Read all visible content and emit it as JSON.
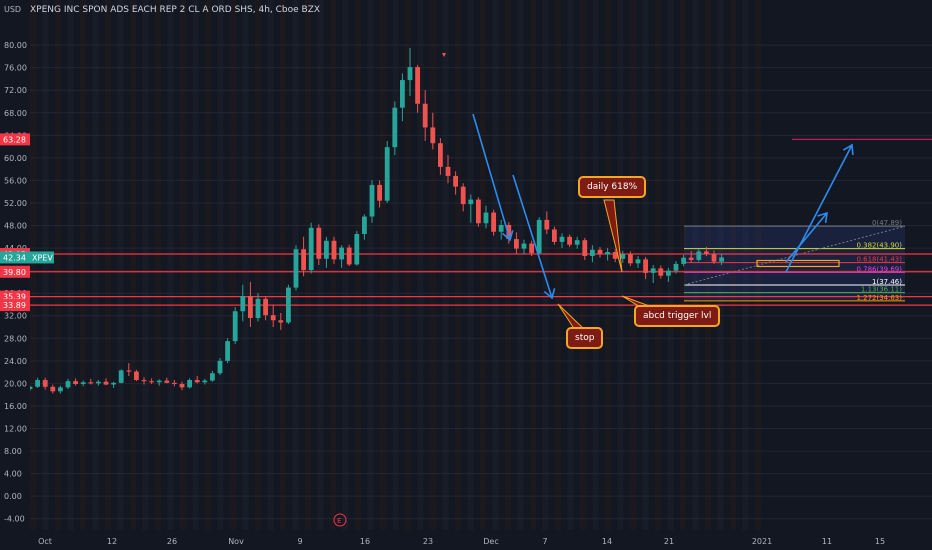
{
  "chart_data": {
    "type": "candlestick",
    "title": "XPENG INC SPON ADS EACH REP 2 CL A ORD SHS, 4h, Cboe BZX",
    "currency": "USD",
    "symbol": "XPEV",
    "ylim": [
      -6,
      88
    ],
    "y_ticks": [
      -4,
      0,
      4,
      8,
      12,
      16,
      20,
      24,
      28,
      32,
      36,
      40,
      44,
      48,
      52,
      56,
      60,
      64,
      68,
      72,
      76,
      80
    ],
    "y_tick_labels": [
      "-4.00",
      "0.00",
      "4.00",
      "8.00",
      "12.00",
      "16.00",
      "20.00",
      "24.00",
      "28.00",
      "32.00",
      "36.00",
      "40.00",
      "44.00",
      "48.00",
      "52.00",
      "56.00",
      "60.00",
      "64.00",
      "68.00",
      "72.00",
      "76.00",
      "80.00"
    ],
    "x_tick_labels": [
      "Oct",
      "12",
      "26",
      "Nov",
      "9",
      "16",
      "23",
      "Dec",
      "7",
      "14",
      "21",
      "2021",
      "11",
      "15"
    ],
    "price_flags": [
      {
        "label": "63.28",
        "value": 63.28,
        "color": "#f23645"
      },
      {
        "label": "42.95",
        "value": 42.95,
        "color": "#f23645"
      },
      {
        "label": "42.34",
        "value": 42.34,
        "color": "#26a69a"
      },
      {
        "label": "39.80",
        "value": 39.8,
        "color": "#f23645"
      },
      {
        "label": "35.39",
        "value": 35.39,
        "color": "#f23645"
      },
      {
        "label": "33.89",
        "value": 33.89,
        "color": "#f23645"
      }
    ],
    "horizontal_lines": [
      63.28,
      42.95,
      39.8,
      35.39,
      33.89
    ],
    "fib_levels": [
      {
        "label": "0(47.89)",
        "value": 47.89,
        "color": "#787b86"
      },
      {
        "label": "0.382(43.90)",
        "value": 43.9,
        "color": "#cddc39"
      },
      {
        "label": "0.618(41.43)",
        "value": 41.43,
        "color": "#f23645"
      },
      {
        "label": "0.786(39.69)",
        "value": 39.69,
        "color": "#e040fb"
      },
      {
        "label": "1(37.46)",
        "value": 37.46,
        "color": "#ffffff"
      },
      {
        "label": "1.13(36.11)",
        "value": 36.11,
        "color": "#4caf50"
      },
      {
        "label": "1.272(34.63)",
        "value": 34.63,
        "color": "#ff9800"
      }
    ],
    "candles": [
      [
        1,
        19.0,
        19.6,
        18.7,
        19.4
      ],
      [
        2,
        19.4,
        21.0,
        19.2,
        20.6
      ],
      [
        3,
        20.6,
        21.0,
        18.9,
        19.4
      ],
      [
        4,
        19.4,
        19.8,
        18.2,
        18.6
      ],
      [
        5,
        18.6,
        19.6,
        18.2,
        19.3
      ],
      [
        6,
        19.3,
        20.8,
        19.0,
        20.4
      ],
      [
        7,
        20.4,
        20.9,
        19.6,
        19.9
      ],
      [
        8,
        19.9,
        20.5,
        19.5,
        20.2
      ],
      [
        9,
        20.2,
        20.8,
        19.8,
        20.0
      ],
      [
        10,
        20.0,
        20.6,
        19.6,
        20.3
      ],
      [
        11,
        20.3,
        20.9,
        19.7,
        19.8
      ],
      [
        12,
        19.8,
        20.3,
        19.2,
        20.1
      ],
      [
        13,
        20.1,
        22.5,
        20.0,
        22.3
      ],
      [
        14,
        22.3,
        23.6,
        21.3,
        22.1
      ],
      [
        15,
        22.1,
        22.4,
        20.4,
        20.6
      ],
      [
        16,
        20.6,
        21.1,
        19.8,
        20.4
      ],
      [
        17,
        20.4,
        20.9,
        19.9,
        20.2
      ],
      [
        18,
        20.2,
        20.7,
        19.6,
        20.5
      ],
      [
        19,
        20.5,
        21.0,
        20.0,
        20.1
      ],
      [
        20,
        20.1,
        20.6,
        19.5,
        19.9
      ],
      [
        21,
        19.9,
        20.3,
        18.8,
        19.3
      ],
      [
        22,
        19.3,
        20.9,
        19.1,
        20.6
      ],
      [
        23,
        20.6,
        21.3,
        20.0,
        20.2
      ],
      [
        24,
        20.2,
        20.8,
        19.8,
        20.5
      ],
      [
        25,
        20.5,
        22.2,
        20.3,
        21.8
      ],
      [
        26,
        21.8,
        24.5,
        21.5,
        24.0
      ],
      [
        27,
        24.0,
        28.0,
        23.6,
        27.5
      ],
      [
        28,
        27.5,
        33.5,
        27.0,
        32.8
      ],
      [
        29,
        32.8,
        37.5,
        31.0,
        35.5
      ],
      [
        30,
        35.5,
        38.0,
        30.0,
        31.6
      ],
      [
        31,
        31.6,
        36.0,
        31.0,
        35.0
      ],
      [
        32,
        35.0,
        35.5,
        31.2,
        32.1
      ],
      [
        33,
        32.1,
        34.0,
        30.0,
        31.2
      ],
      [
        34,
        31.2,
        32.5,
        29.5,
        30.8
      ],
      [
        35,
        30.8,
        37.5,
        30.5,
        37.0
      ],
      [
        36,
        37.0,
        44.5,
        36.5,
        43.8
      ],
      [
        37,
        43.8,
        46.0,
        39.0,
        40.1
      ],
      [
        38,
        40.1,
        48.5,
        39.5,
        47.6
      ],
      [
        39,
        47.6,
        48.2,
        41.0,
        42.1
      ],
      [
        40,
        42.1,
        46.0,
        40.5,
        45.3
      ],
      [
        41,
        45.3,
        46.0,
        41.2,
        42.0
      ],
      [
        42,
        42.0,
        44.5,
        40.5,
        44.1
      ],
      [
        43,
        44.1,
        44.6,
        40.8,
        41.1
      ],
      [
        44,
        41.1,
        47.0,
        40.9,
        46.5
      ],
      [
        45,
        46.5,
        50.0,
        45.5,
        49.6
      ],
      [
        46,
        49.6,
        56.0,
        48.5,
        55.2
      ],
      [
        47,
        55.2,
        56.0,
        51.2,
        52.4
      ],
      [
        48,
        52.4,
        63.0,
        52.0,
        61.9
      ],
      [
        49,
        61.9,
        70.0,
        60.5,
        68.9
      ],
      [
        50,
        68.9,
        75.0,
        66.5,
        73.8
      ],
      [
        51,
        73.8,
        79.5,
        71.0,
        76.1
      ],
      [
        52,
        76.1,
        76.5,
        68.0,
        69.6
      ],
      [
        53,
        69.6,
        72.0,
        63.0,
        65.4
      ],
      [
        54,
        65.4,
        68.0,
        61.5,
        62.6
      ],
      [
        55,
        62.6,
        63.5,
        57.0,
        58.4
      ],
      [
        56,
        58.4,
        60.5,
        55.5,
        56.8
      ],
      [
        57,
        56.8,
        57.6,
        53.5,
        54.9
      ],
      [
        58,
        54.9,
        55.5,
        50.5,
        51.8
      ],
      [
        59,
        51.8,
        53.5,
        48.5,
        52.6
      ],
      [
        60,
        52.6,
        53.0,
        47.8,
        48.4
      ],
      [
        61,
        48.4,
        51.5,
        47.5,
        50.3
      ],
      [
        62,
        50.3,
        50.8,
        46.2,
        46.9
      ],
      [
        63,
        46.9,
        49.0,
        45.5,
        48.1
      ],
      [
        64,
        48.1,
        48.6,
        44.8,
        45.6
      ],
      [
        65,
        45.6,
        46.8,
        43.0,
        43.9
      ],
      [
        66,
        43.9,
        45.5,
        42.9,
        44.8
      ],
      [
        67,
        44.8,
        45.3,
        42.6,
        43.1
      ],
      [
        68,
        43.1,
        49.5,
        43.0,
        49.0
      ],
      [
        69,
        49.0,
        50.5,
        46.5,
        47.3
      ],
      [
        70,
        47.3,
        47.8,
        44.6,
        45.1
      ],
      [
        71,
        45.1,
        46.6,
        44.0,
        46.0
      ],
      [
        72,
        46.0,
        46.4,
        44.2,
        44.6
      ],
      [
        73,
        44.6,
        46.0,
        43.9,
        45.4
      ],
      [
        74,
        45.4,
        45.8,
        41.9,
        42.6
      ],
      [
        75,
        42.6,
        44.5,
        41.5,
        43.7
      ],
      [
        76,
        43.7,
        44.2,
        42.3,
        42.9
      ],
      [
        77,
        42.9,
        44.0,
        41.8,
        43.3
      ],
      [
        78,
        43.3,
        43.8,
        41.5,
        42.1
      ],
      [
        79,
        42.1,
        43.5,
        41.4,
        42.9
      ],
      [
        80,
        42.9,
        43.4,
        40.8,
        41.3
      ],
      [
        81,
        41.3,
        42.6,
        40.5,
        42.0
      ],
      [
        82,
        42.0,
        42.4,
        38.5,
        39.6
      ],
      [
        83,
        39.6,
        41.0,
        37.8,
        40.4
      ],
      [
        84,
        40.4,
        40.9,
        38.6,
        39.1
      ],
      [
        85,
        39.1,
        40.5,
        38.0,
        40.0
      ],
      [
        86,
        40.0,
        41.7,
        39.5,
        41.2
      ],
      [
        87,
        41.2,
        42.8,
        40.8,
        42.3
      ],
      [
        88,
        42.3,
        43.5,
        41.4,
        41.9
      ],
      [
        89,
        41.9,
        43.8,
        41.6,
        43.4
      ],
      [
        90,
        43.4,
        44.2,
        42.6,
        43.0
      ],
      [
        91,
        43.0,
        43.6,
        41.2,
        41.6
      ],
      [
        92,
        41.6,
        42.9,
        41.0,
        42.34
      ]
    ],
    "annotations": [
      {
        "text": "daily 618%"
      },
      {
        "text": "stop"
      },
      {
        "text": "abcd trigger lvl"
      }
    ]
  }
}
